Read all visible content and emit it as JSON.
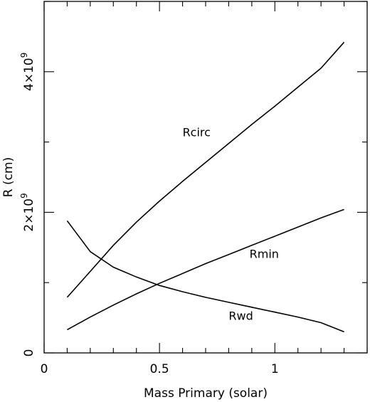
{
  "chart_data": {
    "type": "line",
    "title": "",
    "xlabel": "Mass Primary (solar)",
    "ylabel": "R (cm)",
    "xlim": [
      0,
      1.4
    ],
    "ylim": [
      0,
      5000000000.0
    ],
    "grid": false,
    "legend": "none",
    "x_major_ticks": [
      0,
      0.5,
      1
    ],
    "x_tick_labels": [
      "0",
      "0.5",
      "1"
    ],
    "x_minor_step": 0.1,
    "y_major_ticks": [
      0,
      2000000000.0,
      4000000000.0
    ],
    "y_tick_labels": [
      {
        "mant": "0",
        "exp": ""
      },
      {
        "mant": "2×10",
        "exp": "9"
      },
      {
        "mant": "4×10",
        "exp": "9"
      }
    ],
    "y_minor_step": 1000000000.0,
    "series": [
      {
        "name": "Rcirc",
        "x": [
          0.1,
          0.2,
          0.3,
          0.4,
          0.5,
          0.6,
          0.7,
          0.8,
          0.9,
          1.0,
          1.1,
          1.2,
          1.3
        ],
        "y": [
          790000000.0,
          1160000000.0,
          1530000000.0,
          1860000000.0,
          2160000000.0,
          2440000000.0,
          2710000000.0,
          2980000000.0,
          3250000000.0,
          3510000000.0,
          3780000000.0,
          4050000000.0,
          4420000000.0
        ]
      },
      {
        "name": "Rmin",
        "x": [
          0.1,
          0.2,
          0.3,
          0.4,
          0.5,
          0.6,
          0.7,
          0.8,
          0.9,
          1.0,
          1.1,
          1.2,
          1.3
        ],
        "y": [
          330000000.0,
          510000000.0,
          680000000.0,
          840000000.0,
          990000000.0,
          1130000000.0,
          1270000000.0,
          1400000000.0,
          1530000000.0,
          1660000000.0,
          1790000000.0,
          1920000000.0,
          2040000000.0
        ]
      },
      {
        "name": "Rwd",
        "x": [
          0.1,
          0.2,
          0.3,
          0.4,
          0.5,
          0.6,
          0.7,
          0.8,
          0.9,
          1.0,
          1.1,
          1.2,
          1.3
        ],
        "y": [
          1880000000.0,
          1440000000.0,
          1220000000.0,
          1080000000.0,
          960000000.0,
          870000000.0,
          790000000.0,
          720000000.0,
          650000000.0,
          580000000.0,
          510000000.0,
          430000000.0,
          300000000.0
        ]
      }
    ],
    "annotations": [
      {
        "text": "Rcirc",
        "x": 0.6,
        "y": 3080000000.0
      },
      {
        "text": "Rmin",
        "x": 0.89,
        "y": 1350000000.0
      },
      {
        "text": "Rwd",
        "x": 0.8,
        "y": 470000000.0
      }
    ]
  }
}
